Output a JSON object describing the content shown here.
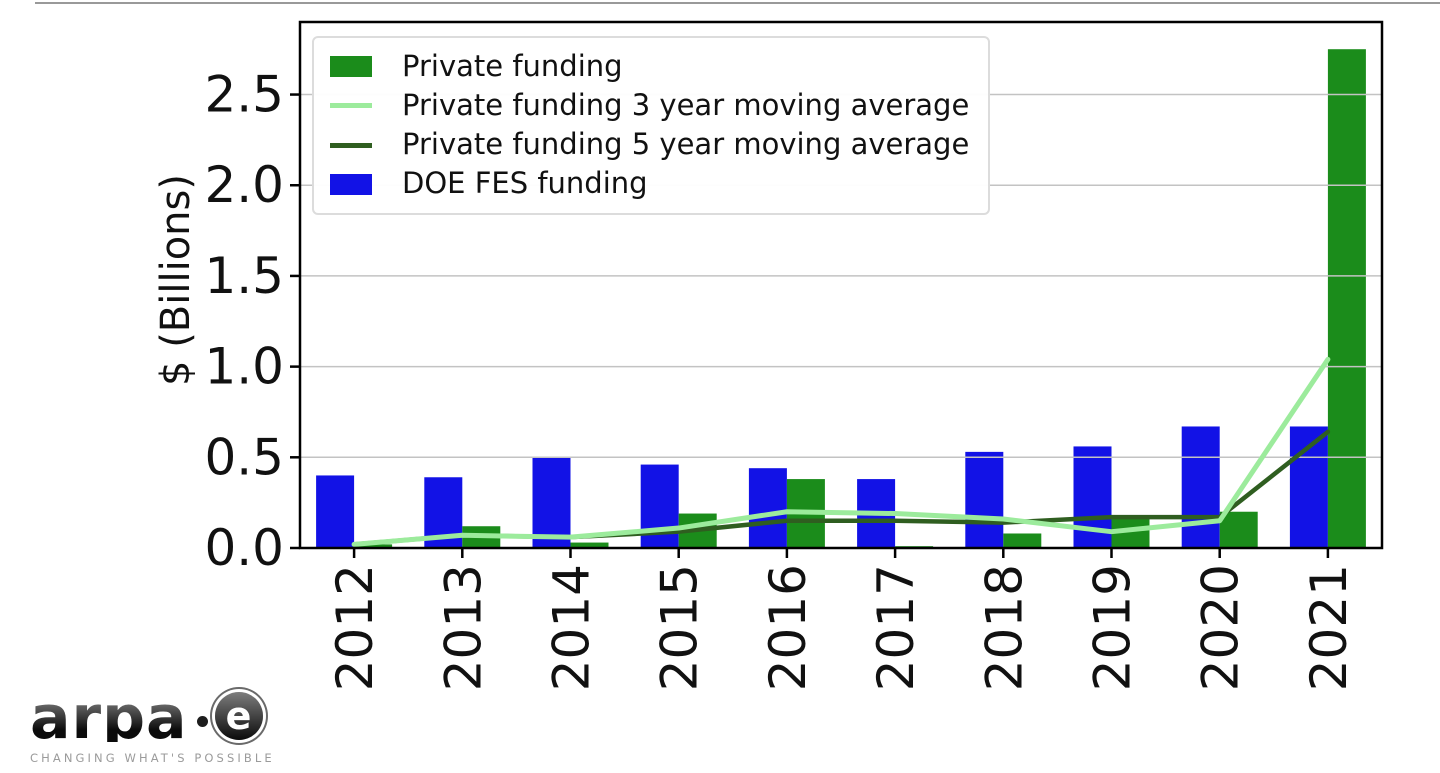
{
  "chart_data": {
    "type": "bar",
    "title": "",
    "xlabel": "",
    "ylabel": "$ (Billions)",
    "categories": [
      "2012",
      "2013",
      "2014",
      "2015",
      "2016",
      "2017",
      "2018",
      "2019",
      "2020",
      "2021"
    ],
    "ylim": [
      0,
      2.9
    ],
    "yticks": [
      "0.0",
      "0.5",
      "1.0",
      "1.5",
      "2.0",
      "2.5"
    ],
    "grid": "horizontal gridlines at each 0.5",
    "legend_position": "upper left",
    "series": [
      {
        "name": "Private funding",
        "type": "bar",
        "color": "#1b8c1b",
        "values": [
          0.02,
          0.12,
          0.03,
          0.19,
          0.38,
          0.01,
          0.08,
          0.17,
          0.2,
          2.75
        ]
      },
      {
        "name": "Private funding 3 year moving average",
        "type": "line",
        "color": "#9ceb9c",
        "values": [
          0.02,
          0.07,
          0.06,
          0.11,
          0.2,
          0.19,
          0.16,
          0.09,
          0.15,
          1.04
        ]
      },
      {
        "name": "Private funding 5 year moving average",
        "type": "line",
        "color": "#2f5e20",
        "values": [
          0.02,
          0.07,
          0.06,
          0.09,
          0.15,
          0.15,
          0.14,
          0.17,
          0.17,
          0.64
        ]
      },
      {
        "name": "DOE FES funding",
        "type": "bar",
        "color": "#1212e6",
        "values": [
          0.4,
          0.39,
          0.5,
          0.46,
          0.44,
          0.38,
          0.53,
          0.56,
          0.67,
          0.67
        ]
      }
    ]
  },
  "logo": {
    "wordmark": "arpa",
    "separator": "·",
    "wordmark_e": "e",
    "tagline": "CHANGING WHAT'S POSSIBLE"
  }
}
